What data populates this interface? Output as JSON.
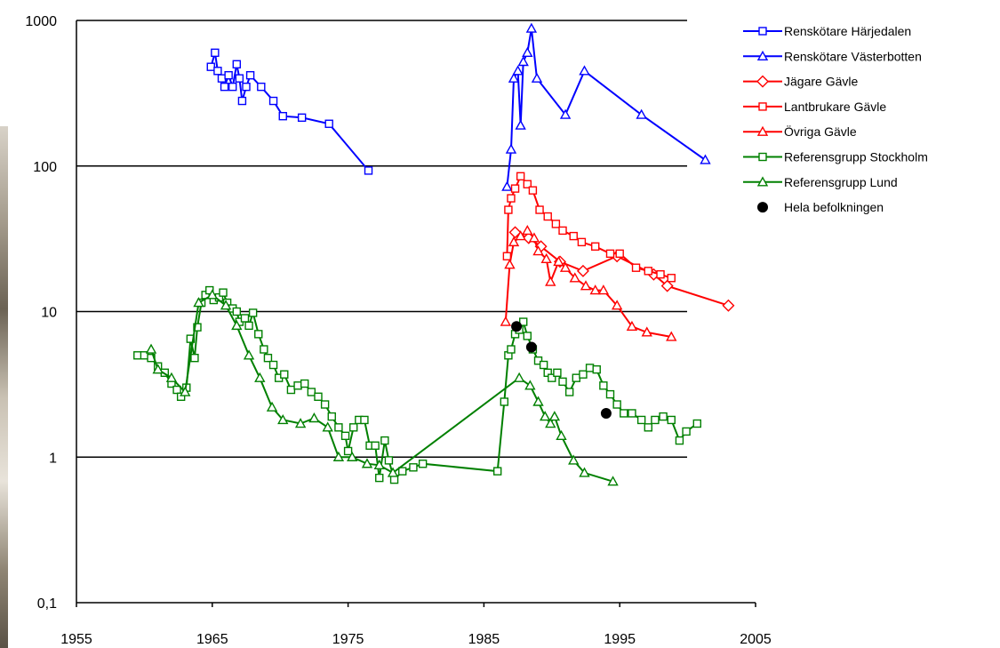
{
  "chart_data": {
    "type": "line",
    "x_ticks": [
      "1955",
      "1965",
      "1975",
      "1985",
      "1995",
      "2005"
    ],
    "y_ticks": [
      "1000",
      "100",
      "10",
      "1",
      "0,1"
    ],
    "xlim": [
      1955,
      2005
    ],
    "ylim": [
      0.1,
      1000
    ],
    "y_scale": "log",
    "grid": "horizontal",
    "legend_position": "top-right",
    "series": [
      {
        "name": "Renskötare Härjedalen",
        "color": "#0000ff",
        "marker": "square",
        "points": [
          [
            1964.9,
            480
          ],
          [
            1965.2,
            600
          ],
          [
            1965.4,
            450
          ],
          [
            1965.7,
            400
          ],
          [
            1965.9,
            350
          ],
          [
            1966.2,
            420
          ],
          [
            1966.5,
            350
          ],
          [
            1966.8,
            500
          ],
          [
            1967.0,
            400
          ],
          [
            1967.2,
            280
          ],
          [
            1967.5,
            350
          ],
          [
            1967.8,
            420
          ],
          [
            1968.6,
            350
          ],
          [
            1969.5,
            280
          ],
          [
            1970.2,
            220
          ],
          [
            1971.6,
            215
          ],
          [
            1973.6,
            195
          ],
          [
            1976.5,
            93
          ]
        ]
      },
      {
        "name": "Renskötare Västerbotten",
        "color": "#0000ff",
        "marker": "triangle",
        "points": [
          [
            1986.7,
            72
          ],
          [
            1987.0,
            130
          ],
          [
            1987.2,
            400
          ],
          [
            1987.5,
            450
          ],
          [
            1987.7,
            190
          ],
          [
            1987.9,
            520
          ],
          [
            1988.2,
            600
          ],
          [
            1988.5,
            880
          ],
          [
            1988.9,
            400
          ],
          [
            1991.0,
            225
          ],
          [
            1992.4,
            450
          ],
          [
            1996.6,
            225
          ],
          [
            2001.3,
            110
          ]
        ]
      },
      {
        "name": "Jägare Gävle",
        "color": "#ff0000",
        "marker": "diamond",
        "points": [
          [
            1987.3,
            35
          ],
          [
            1988.3,
            32
          ],
          [
            1989.2,
            28
          ],
          [
            1990.6,
            22
          ],
          [
            1992.3,
            19
          ],
          [
            1994.8,
            24
          ],
          [
            1997.5,
            18
          ],
          [
            1998.5,
            15
          ],
          [
            2003.0,
            11
          ]
        ]
      },
      {
        "name": "Lantbrukare Gävle",
        "color": "#ff0000",
        "marker": "square",
        "points": [
          [
            1986.7,
            24
          ],
          [
            1986.8,
            50
          ],
          [
            1987.0,
            60
          ],
          [
            1987.3,
            70
          ],
          [
            1987.7,
            85
          ],
          [
            1988.2,
            75
          ],
          [
            1988.6,
            68
          ],
          [
            1989.1,
            50
          ],
          [
            1989.7,
            45
          ],
          [
            1990.3,
            40
          ],
          [
            1990.8,
            36
          ],
          [
            1991.6,
            33
          ],
          [
            1992.2,
            30
          ],
          [
            1993.2,
            28
          ],
          [
            1994.3,
            25
          ],
          [
            1995.0,
            25
          ],
          [
            1996.2,
            20
          ],
          [
            1997.1,
            19
          ],
          [
            1998.0,
            18
          ],
          [
            1998.8,
            17
          ]
        ]
      },
      {
        "name": "Övriga Gävle",
        "color": "#ff0000",
        "marker": "triangle",
        "points": [
          [
            1986.6,
            8.5
          ],
          [
            1986.9,
            21
          ],
          [
            1987.2,
            30
          ],
          [
            1987.7,
            33
          ],
          [
            1988.2,
            36
          ],
          [
            1988.7,
            32
          ],
          [
            1989.0,
            26
          ],
          [
            1989.6,
            23
          ],
          [
            1989.9,
            16
          ],
          [
            1990.5,
            22
          ],
          [
            1991.0,
            20
          ],
          [
            1991.7,
            17
          ],
          [
            1992.5,
            15
          ],
          [
            1993.2,
            14
          ],
          [
            1993.8,
            14
          ],
          [
            1994.8,
            11
          ],
          [
            1995.9,
            7.9
          ],
          [
            1997.0,
            7.2
          ],
          [
            1998.8,
            6.7
          ]
        ]
      },
      {
        "name": "Referensgrupp Stockholm",
        "color": "#008000",
        "marker": "square",
        "points": [
          [
            1959.5,
            5.0
          ],
          [
            1960.0,
            5.0
          ],
          [
            1960.5,
            4.8
          ],
          [
            1961.0,
            4.2
          ],
          [
            1961.5,
            3.8
          ],
          [
            1962.0,
            3.2
          ],
          [
            1962.4,
            2.9
          ],
          [
            1962.7,
            2.6
          ],
          [
            1963.1,
            3.0
          ],
          [
            1963.4,
            6.5
          ],
          [
            1963.7,
            4.8
          ],
          [
            1963.9,
            7.8
          ],
          [
            1964.2,
            11.5
          ],
          [
            1964.5,
            13.0
          ],
          [
            1964.8,
            14.0
          ],
          [
            1965.1,
            12.0
          ],
          [
            1965.5,
            12.5
          ],
          [
            1965.8,
            13.5
          ],
          [
            1966.1,
            11.5
          ],
          [
            1966.5,
            10.5
          ],
          [
            1966.8,
            10.0
          ],
          [
            1967.0,
            8.5
          ],
          [
            1967.4,
            9.0
          ],
          [
            1967.7,
            8.0
          ],
          [
            1968.0,
            9.8
          ],
          [
            1968.4,
            7.0
          ],
          [
            1968.8,
            5.5
          ],
          [
            1969.1,
            4.8
          ],
          [
            1969.5,
            4.3
          ],
          [
            1969.9,
            3.5
          ],
          [
            1970.3,
            3.7
          ],
          [
            1970.8,
            2.9
          ],
          [
            1971.3,
            3.1
          ],
          [
            1971.8,
            3.2
          ],
          [
            1972.3,
            2.8
          ],
          [
            1972.8,
            2.6
          ],
          [
            1973.3,
            2.3
          ],
          [
            1973.8,
            1.9
          ],
          [
            1974.3,
            1.6
          ],
          [
            1974.8,
            1.4
          ],
          [
            1975.0,
            1.1
          ],
          [
            1975.4,
            1.6
          ],
          [
            1975.8,
            1.8
          ],
          [
            1976.2,
            1.8
          ],
          [
            1976.6,
            1.2
          ],
          [
            1977.0,
            1.2
          ],
          [
            1977.3,
            0.72
          ],
          [
            1977.7,
            1.3
          ],
          [
            1978.0,
            0.95
          ],
          [
            1978.4,
            0.7
          ],
          [
            1979.0,
            0.8
          ],
          [
            1979.8,
            0.85
          ],
          [
            1980.5,
            0.9
          ],
          [
            1986.0,
            0.8
          ],
          [
            1986.5,
            2.4
          ],
          [
            1986.8,
            5.0
          ],
          [
            1987.0,
            5.5
          ],
          [
            1987.3,
            7.0
          ],
          [
            1987.6,
            7.5
          ],
          [
            1987.9,
            8.5
          ],
          [
            1988.2,
            6.8
          ],
          [
            1988.6,
            5.5
          ],
          [
            1989.0,
            4.6
          ],
          [
            1989.4,
            4.3
          ],
          [
            1989.7,
            3.8
          ],
          [
            1990.0,
            3.5
          ],
          [
            1990.4,
            3.8
          ],
          [
            1990.8,
            3.3
          ],
          [
            1991.3,
            2.8
          ],
          [
            1991.8,
            3.5
          ],
          [
            1992.3,
            3.7
          ],
          [
            1992.8,
            4.1
          ],
          [
            1993.3,
            4.0
          ],
          [
            1993.8,
            3.1
          ],
          [
            1994.3,
            2.7
          ],
          [
            1994.8,
            2.3
          ],
          [
            1995.3,
            2.0
          ],
          [
            1995.9,
            2.0
          ],
          [
            1996.6,
            1.8
          ],
          [
            1997.1,
            1.6
          ],
          [
            1997.6,
            1.8
          ],
          [
            1998.2,
            1.9
          ],
          [
            1998.8,
            1.8
          ],
          [
            1999.4,
            1.3
          ],
          [
            1999.9,
            1.5
          ],
          [
            2000.7,
            1.7
          ]
        ]
      },
      {
        "name": "Referensgrupp Lund",
        "color": "#008000",
        "marker": "triangle",
        "points": [
          [
            1960.5,
            5.5
          ],
          [
            1961.0,
            4.0
          ],
          [
            1962.0,
            3.5
          ],
          [
            1963.0,
            2.8
          ],
          [
            1964.0,
            11.5
          ],
          [
            1965.0,
            13.0
          ],
          [
            1966.0,
            11.0
          ],
          [
            1966.8,
            8.0
          ],
          [
            1967.7,
            5.0
          ],
          [
            1968.5,
            3.5
          ],
          [
            1969.4,
            2.2
          ],
          [
            1970.2,
            1.8
          ],
          [
            1971.5,
            1.7
          ],
          [
            1972.5,
            1.85
          ],
          [
            1973.5,
            1.6
          ],
          [
            1974.3,
            1.0
          ],
          [
            1975.3,
            1.0
          ],
          [
            1976.4,
            0.9
          ],
          [
            1977.3,
            0.88
          ],
          [
            1978.3,
            0.78
          ],
          [
            1987.6,
            3.5
          ],
          [
            1988.4,
            3.1
          ],
          [
            1989.0,
            2.4
          ],
          [
            1989.5,
            1.9
          ],
          [
            1989.9,
            1.7
          ],
          [
            1990.2,
            1.9
          ],
          [
            1990.7,
            1.4
          ],
          [
            1991.6,
            0.95
          ],
          [
            1992.4,
            0.78
          ],
          [
            1994.5,
            0.68
          ]
        ]
      },
      {
        "name": "Hela befolkningen",
        "color": "#000000",
        "marker": "circle",
        "line": false,
        "points": [
          [
            1987.4,
            7.9
          ],
          [
            1988.5,
            5.7
          ],
          [
            1994.0,
            2.0
          ]
        ]
      }
    ]
  }
}
